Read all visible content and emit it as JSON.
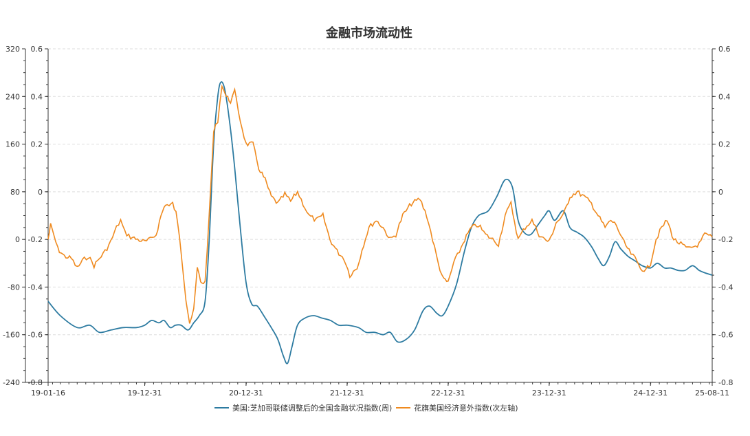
{
  "chart_data": {
    "type": "line",
    "title": "金融市场流动性",
    "x_tick_labels": [
      "19-01-16",
      "19-12-31",
      "20-12-31",
      "21-12-31",
      "22-12-31",
      "23-12-31",
      "24-12-31",
      "25-08-11"
    ],
    "x_range": [
      "2019-01-16",
      "2025-08-11"
    ],
    "y_left_axis": {
      "ticks": [
        320,
        240,
        160,
        80,
        0,
        -80,
        -160,
        -240
      ],
      "range": [
        -240,
        320
      ]
    },
    "y_left_axis2": {
      "ticks": [
        0.6,
        0.4,
        0.2,
        0,
        -0.2,
        -0.4,
        -0.6,
        -0.8
      ],
      "range": [
        -0.8,
        0.6
      ]
    },
    "y_right_axis": {
      "ticks": [
        0.6,
        0.4,
        0.2,
        0,
        -0.2,
        -0.4,
        -0.6,
        -0.8
      ],
      "range": [
        -0.8,
        0.6
      ]
    },
    "grid": "horizontal dashed",
    "legend_position": "bottom",
    "series": [
      {
        "name": "美国:芝加哥联储调整后的全国金融状况指数(周)",
        "color": "#2d7ba1",
        "axis": "right",
        "points": [
          [
            "2019-01-16",
            -0.46
          ],
          [
            "2019-03-01",
            -0.52
          ],
          [
            "2019-05-01",
            -0.57
          ],
          [
            "2019-06-15",
            -0.56
          ],
          [
            "2019-07-20",
            -0.59
          ],
          [
            "2019-09-01",
            -0.58
          ],
          [
            "2019-10-15",
            -0.57
          ],
          [
            "2019-12-01",
            -0.57
          ],
          [
            "2019-12-31",
            -0.56
          ],
          [
            "2020-01-25",
            -0.54
          ],
          [
            "2020-02-20",
            -0.55
          ],
          [
            "2020-03-10",
            -0.54
          ],
          [
            "2020-04-01",
            -0.57
          ],
          [
            "2020-04-20",
            -0.56
          ],
          [
            "2020-05-10",
            -0.56
          ],
          [
            "2020-06-05",
            -0.58
          ],
          [
            "2020-06-25",
            -0.55
          ],
          [
            "2020-07-15",
            -0.52
          ],
          [
            "2020-08-05",
            -0.46
          ],
          [
            "2020-08-20",
            -0.2
          ],
          [
            "2020-09-05",
            0.2
          ],
          [
            "2020-09-20",
            0.4
          ],
          [
            "2020-10-01",
            0.46
          ],
          [
            "2020-10-15",
            0.43
          ],
          [
            "2020-11-01",
            0.3
          ],
          [
            "2020-11-20",
            0.1
          ],
          [
            "2020-12-10",
            -0.15
          ],
          [
            "2020-12-31",
            -0.38
          ],
          [
            "2021-01-20",
            -0.47
          ],
          [
            "2021-02-10",
            -0.48
          ],
          [
            "2021-03-05",
            -0.52
          ],
          [
            "2021-04-01",
            -0.57
          ],
          [
            "2021-04-25",
            -0.62
          ],
          [
            "2021-05-15",
            -0.69
          ],
          [
            "2021-05-30",
            -0.72
          ],
          [
            "2021-06-15",
            -0.65
          ],
          [
            "2021-07-05",
            -0.56
          ],
          [
            "2021-08-01",
            -0.53
          ],
          [
            "2021-09-01",
            -0.52
          ],
          [
            "2021-10-01",
            -0.53
          ],
          [
            "2021-11-01",
            -0.54
          ],
          [
            "2021-12-01",
            -0.56
          ],
          [
            "2022-01-01",
            -0.56
          ],
          [
            "2022-02-10",
            -0.57
          ],
          [
            "2022-03-10",
            -0.59
          ],
          [
            "2022-04-10",
            -0.59
          ],
          [
            "2022-05-10",
            -0.6
          ],
          [
            "2022-06-05",
            -0.59
          ],
          [
            "2022-07-01",
            -0.63
          ],
          [
            "2022-08-01",
            -0.62
          ],
          [
            "2022-09-01",
            -0.58
          ],
          [
            "2022-10-01",
            -0.5
          ],
          [
            "2022-10-25",
            -0.48
          ],
          [
            "2022-11-20",
            -0.51
          ],
          [
            "2022-12-10",
            -0.52
          ],
          [
            "2022-12-31",
            -0.48
          ],
          [
            "2023-01-30",
            -0.39
          ],
          [
            "2023-02-28",
            -0.25
          ],
          [
            "2023-03-25",
            -0.15
          ],
          [
            "2023-04-20",
            -0.1
          ],
          [
            "2023-05-25",
            -0.08
          ],
          [
            "2023-06-25",
            -0.02
          ],
          [
            "2023-07-25",
            0.05
          ],
          [
            "2023-08-20",
            0.02
          ],
          [
            "2023-09-10",
            -0.12
          ],
          [
            "2023-10-01",
            -0.17
          ],
          [
            "2023-10-25",
            -0.18
          ],
          [
            "2023-11-20",
            -0.14
          ],
          [
            "2023-12-15",
            -0.1
          ],
          [
            "2023-12-31",
            -0.08
          ],
          [
            "2024-01-20",
            -0.12
          ],
          [
            "2024-02-20",
            -0.08
          ],
          [
            "2024-03-15",
            -0.15
          ],
          [
            "2024-04-10",
            -0.17
          ],
          [
            "2024-05-05",
            -0.19
          ],
          [
            "2024-06-01",
            -0.23
          ],
          [
            "2024-06-25",
            -0.28
          ],
          [
            "2024-07-15",
            -0.31
          ],
          [
            "2024-08-05",
            -0.27
          ],
          [
            "2024-08-25",
            -0.21
          ],
          [
            "2024-09-15",
            -0.24
          ],
          [
            "2024-10-10",
            -0.27
          ],
          [
            "2024-11-05",
            -0.29
          ],
          [
            "2024-12-01",
            -0.31
          ],
          [
            "2024-12-31",
            -0.32
          ],
          [
            "2025-01-25",
            -0.3
          ],
          [
            "2025-02-20",
            -0.32
          ],
          [
            "2025-03-15",
            -0.32
          ],
          [
            "2025-04-10",
            -0.33
          ],
          [
            "2025-05-05",
            -0.33
          ],
          [
            "2025-06-01",
            -0.31
          ],
          [
            "2025-06-25",
            -0.33
          ],
          [
            "2025-07-15",
            -0.34
          ],
          [
            "2025-08-11",
            -0.35
          ]
        ]
      },
      {
        "name": "花旗美国经济意外指数(次左轴)",
        "color": "#ef8a1f",
        "axis": "left2",
        "points": [
          [
            "2019-01-16",
            -0.2
          ],
          [
            "2019-01-25",
            -0.14
          ],
          [
            "2019-02-05",
            -0.18
          ],
          [
            "2019-02-20",
            -0.24
          ],
          [
            "2019-03-15",
            -0.27
          ],
          [
            "2019-04-10",
            -0.28
          ],
          [
            "2019-05-01",
            -0.32
          ],
          [
            "2019-05-20",
            -0.29
          ],
          [
            "2019-06-10",
            -0.27
          ],
          [
            "2019-07-01",
            -0.31
          ],
          [
            "2019-07-20",
            -0.28
          ],
          [
            "2019-08-10",
            -0.25
          ],
          [
            "2019-08-30",
            -0.21
          ],
          [
            "2019-09-20",
            -0.15
          ],
          [
            "2019-10-05",
            -0.12
          ],
          [
            "2019-10-20",
            -0.17
          ],
          [
            "2019-11-10",
            -0.19
          ],
          [
            "2019-12-05",
            -0.2
          ],
          [
            "2019-12-31",
            -0.21
          ],
          [
            "2020-01-20",
            -0.2
          ],
          [
            "2020-02-10",
            -0.18
          ],
          [
            "2020-02-28",
            -0.1
          ],
          [
            "2020-03-15",
            -0.05
          ],
          [
            "2020-03-28",
            -0.06
          ],
          [
            "2020-04-10",
            -0.05
          ],
          [
            "2020-04-22",
            -0.09
          ],
          [
            "2020-05-05",
            -0.19
          ],
          [
            "2020-05-15",
            -0.3
          ],
          [
            "2020-05-28",
            -0.45
          ],
          [
            "2020-06-10",
            -0.55
          ],
          [
            "2020-06-25",
            -0.5
          ],
          [
            "2020-07-08",
            -0.32
          ],
          [
            "2020-07-20",
            -0.38
          ],
          [
            "2020-08-05",
            -0.38
          ],
          [
            "2020-08-20",
            -0.1
          ],
          [
            "2020-09-05",
            0.25
          ],
          [
            "2020-09-20",
            0.3
          ],
          [
            "2020-10-05",
            0.45
          ],
          [
            "2020-10-20",
            0.4
          ],
          [
            "2020-11-05",
            0.38
          ],
          [
            "2020-11-20",
            0.42
          ],
          [
            "2020-12-10",
            0.3
          ],
          [
            "2020-12-31",
            0.2
          ],
          [
            "2021-01-25",
            0.2
          ],
          [
            "2021-02-15",
            0.1
          ],
          [
            "2021-03-10",
            0.05
          ],
          [
            "2021-04-01",
            -0.02
          ],
          [
            "2021-04-25",
            -0.05
          ],
          [
            "2021-05-20",
            -0.01
          ],
          [
            "2021-06-10",
            -0.04
          ],
          [
            "2021-07-05",
            0.0
          ],
          [
            "2021-07-25",
            -0.05
          ],
          [
            "2021-08-15",
            -0.1
          ],
          [
            "2021-09-10",
            -0.12
          ],
          [
            "2021-10-05",
            -0.1
          ],
          [
            "2021-10-30",
            -0.2
          ],
          [
            "2021-11-25",
            -0.25
          ],
          [
            "2021-12-20",
            -0.28
          ],
          [
            "2022-01-10",
            -0.35
          ],
          [
            "2022-02-05",
            -0.32
          ],
          [
            "2022-03-01",
            -0.22
          ],
          [
            "2022-03-20",
            -0.15
          ],
          [
            "2022-04-15",
            -0.12
          ],
          [
            "2022-05-10",
            -0.15
          ],
          [
            "2022-06-05",
            -0.2
          ],
          [
            "2022-06-25",
            -0.18
          ],
          [
            "2022-07-20",
            -0.1
          ],
          [
            "2022-08-20",
            -0.05
          ],
          [
            "2022-09-20",
            -0.03
          ],
          [
            "2022-10-15",
            -0.1
          ],
          [
            "2022-11-05",
            -0.2
          ],
          [
            "2022-11-25",
            -0.3
          ],
          [
            "2022-12-15",
            -0.37
          ],
          [
            "2022-12-31",
            -0.38
          ],
          [
            "2023-01-20",
            -0.3
          ],
          [
            "2023-02-10",
            -0.25
          ],
          [
            "2023-03-01",
            -0.2
          ],
          [
            "2023-03-25",
            -0.15
          ],
          [
            "2023-04-20",
            -0.14
          ],
          [
            "2023-05-15",
            -0.18
          ],
          [
            "2023-06-10",
            -0.2
          ],
          [
            "2023-07-01",
            -0.22
          ],
          [
            "2023-07-25",
            -0.1
          ],
          [
            "2023-08-15",
            -0.05
          ],
          [
            "2023-09-10",
            -0.2
          ],
          [
            "2023-10-05",
            -0.15
          ],
          [
            "2023-10-30",
            -0.12
          ],
          [
            "2023-11-25",
            -0.18
          ],
          [
            "2023-12-15",
            -0.2
          ],
          [
            "2023-12-31",
            -0.21
          ],
          [
            "2024-01-25",
            -0.13
          ],
          [
            "2024-02-20",
            -0.1
          ],
          [
            "2024-03-15",
            -0.02
          ],
          [
            "2024-04-10",
            0.0
          ],
          [
            "2024-05-05",
            -0.02
          ],
          [
            "2024-06-01",
            -0.05
          ],
          [
            "2024-06-25",
            -0.1
          ],
          [
            "2024-07-20",
            -0.15
          ],
          [
            "2024-08-10",
            -0.12
          ],
          [
            "2024-08-30",
            -0.14
          ],
          [
            "2024-09-20",
            -0.2
          ],
          [
            "2024-10-15",
            -0.25
          ],
          [
            "2024-11-05",
            -0.28
          ],
          [
            "2024-11-25",
            -0.32
          ],
          [
            "2024-12-15",
            -0.33
          ],
          [
            "2024-12-31",
            -0.3
          ],
          [
            "2025-01-20",
            -0.2
          ],
          [
            "2025-02-10",
            -0.15
          ],
          [
            "2025-03-01",
            -0.12
          ],
          [
            "2025-03-25",
            -0.2
          ],
          [
            "2025-04-20",
            -0.22
          ],
          [
            "2025-05-15",
            -0.24
          ],
          [
            "2025-06-05",
            -0.23
          ],
          [
            "2025-06-25",
            -0.22
          ],
          [
            "2025-07-15",
            -0.18
          ],
          [
            "2025-08-11",
            -0.19
          ]
        ]
      }
    ]
  }
}
